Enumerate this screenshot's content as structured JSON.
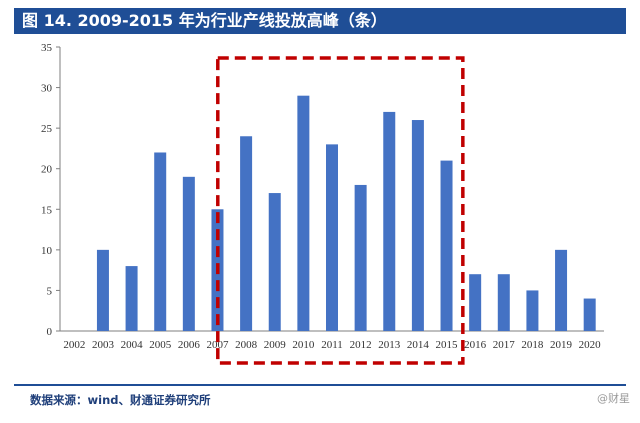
{
  "title": "图 14. 2009-2015 年为行业产线投放高峰（条）",
  "source": "数据来源：wind、财通证券研究所",
  "watermark": "@财星",
  "colors": {
    "bar": "#4472c4",
    "highlight": "#c00000",
    "title_bg": "#1f4e96"
  },
  "chart_data": {
    "type": "bar",
    "title": "图 14. 2009-2015 年为行业产线投放高峰（条）",
    "categories": [
      "2002",
      "2003",
      "2004",
      "2005",
      "2006",
      "2007",
      "2008",
      "2009",
      "2010",
      "2011",
      "2012",
      "2013",
      "2014",
      "2015",
      "2016",
      "2017",
      "2018",
      "2019",
      "2020"
    ],
    "values": [
      0,
      10,
      8,
      22,
      19,
      15,
      24,
      17,
      29,
      23,
      18,
      27,
      26,
      21,
      7,
      7,
      5,
      10,
      4
    ],
    "ylim": [
      0,
      35
    ],
    "yticks": [
      0,
      5,
      10,
      15,
      20,
      25,
      30,
      35
    ],
    "xlabel": "",
    "ylabel": "",
    "grid": false,
    "highlight_range": [
      "2008",
      "2015"
    ]
  }
}
